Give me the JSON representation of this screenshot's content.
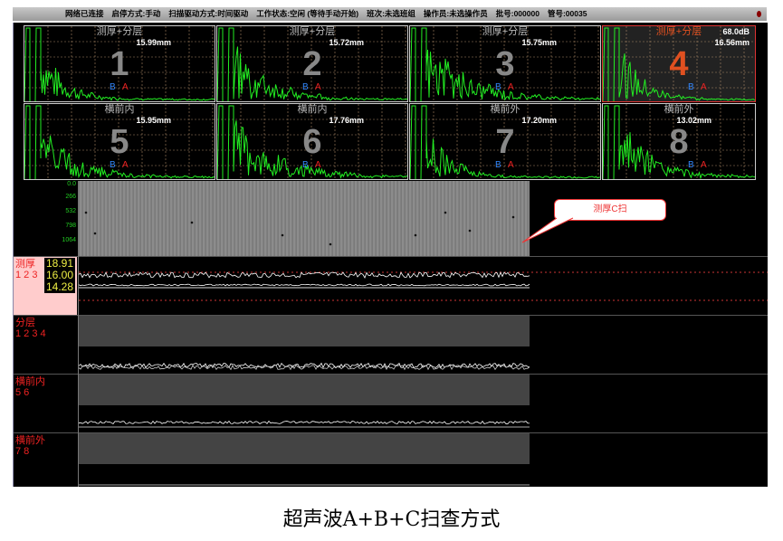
{
  "status_bar": {
    "items": [
      "网络已连接",
      "启停方式:手动",
      "扫描驱动方式:时间驱动",
      "工作状态:空闲 (等待手动开始)",
      "班次:未选班组",
      "操作员:未选操作员",
      "批号:000000",
      "管号:00035"
    ]
  },
  "ascan_channels": [
    {
      "title": "测厚+分层",
      "value": "15.99mm",
      "number": "1",
      "gate_b": "B",
      "gate_a": "A",
      "selected": false
    },
    {
      "title": "测厚+分层",
      "value": "15.72mm",
      "number": "2",
      "gate_b": "B",
      "gate_a": "A",
      "selected": false
    },
    {
      "title": "测厚+分层",
      "value": "15.75mm",
      "number": "3",
      "gate_b": "B",
      "gate_a": "A",
      "selected": false
    },
    {
      "title": "测厚+分层",
      "value": "16.56mm",
      "gain": "68.0dB",
      "number": "4",
      "gate_b": "B",
      "gate_a": "A",
      "selected": true
    },
    {
      "title": "横前内",
      "value": "15.95mm",
      "number": "5",
      "gate_b": "B",
      "gate_a": "A",
      "selected": false
    },
    {
      "title": "横前内",
      "value": "17.76mm",
      "number": "6",
      "gate_b": "B",
      "gate_a": "A",
      "selected": false
    },
    {
      "title": "横前外",
      "value": "17.20mm",
      "number": "7",
      "gate_b": "B",
      "gate_a": "A",
      "selected": false
    },
    {
      "title": "横前外",
      "value": "13.02mm",
      "number": "8",
      "gate_b": "B",
      "gate_a": "A",
      "selected": false
    }
  ],
  "cscan": {
    "ticks": [
      "0.0",
      "266",
      "532",
      "798",
      "1064"
    ],
    "callout": "测厚C扫"
  },
  "bscans": [
    {
      "label": "测厚",
      "channels": "1 2 3",
      "values": [
        "18.91",
        "16.00",
        "14.28"
      ]
    },
    {
      "label": "分层",
      "channels": "1 2 3 4"
    },
    {
      "label": "横前内",
      "channels": "5 6"
    },
    {
      "label": "横前外",
      "channels": "7 8"
    }
  ],
  "caption": "超声波A+B+C扫查方式",
  "colors": {
    "trace": "#22ee22",
    "alarm": "#e22222",
    "selected": "#e05020"
  }
}
